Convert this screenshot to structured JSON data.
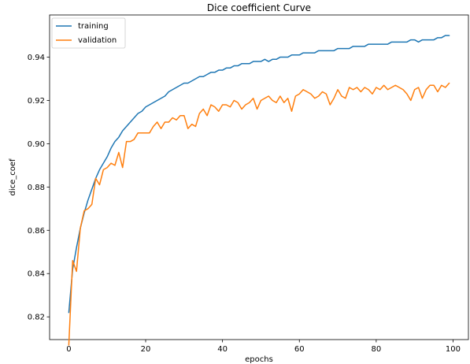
{
  "chart_data": {
    "type": "line",
    "title": "Dice coefficient Curve",
    "xlabel": "epochs",
    "ylabel": "dice_coef",
    "xlim": [
      -5,
      104
    ],
    "ylim": [
      0.8095,
      0.9595
    ],
    "xticks": [
      0,
      20,
      40,
      60,
      80,
      100
    ],
    "yticks": [
      0.82,
      0.84,
      0.86,
      0.88,
      0.9,
      0.92,
      0.94
    ],
    "ytick_labels": [
      "0.82",
      "0.84",
      "0.86",
      "0.88",
      "0.90",
      "0.92",
      "0.94"
    ],
    "grid": false,
    "legend": "top-left",
    "x": [
      0,
      1,
      2,
      3,
      4,
      5,
      6,
      7,
      8,
      9,
      10,
      11,
      12,
      13,
      14,
      15,
      16,
      17,
      18,
      19,
      20,
      21,
      22,
      23,
      24,
      25,
      26,
      27,
      28,
      29,
      30,
      31,
      32,
      33,
      34,
      35,
      36,
      37,
      38,
      39,
      40,
      41,
      42,
      43,
      44,
      45,
      46,
      47,
      48,
      49,
      50,
      51,
      52,
      53,
      54,
      55,
      56,
      57,
      58,
      59,
      60,
      61,
      62,
      63,
      64,
      65,
      66,
      67,
      68,
      69,
      70,
      71,
      72,
      73,
      74,
      75,
      76,
      77,
      78,
      79,
      80,
      81,
      82,
      83,
      84,
      85,
      86,
      87,
      88,
      89,
      90,
      91,
      92,
      93,
      94,
      95,
      96,
      97,
      98,
      99
    ],
    "series": [
      {
        "name": "training",
        "color": "#1f77b4",
        "values": [
          0.822,
          0.842,
          0.852,
          0.861,
          0.868,
          0.874,
          0.879,
          0.884,
          0.888,
          0.891,
          0.894,
          0.898,
          0.901,
          0.903,
          0.906,
          0.908,
          0.91,
          0.912,
          0.914,
          0.915,
          0.917,
          0.918,
          0.919,
          0.92,
          0.921,
          0.922,
          0.924,
          0.925,
          0.926,
          0.927,
          0.928,
          0.928,
          0.929,
          0.93,
          0.931,
          0.931,
          0.932,
          0.933,
          0.933,
          0.934,
          0.934,
          0.935,
          0.935,
          0.936,
          0.936,
          0.937,
          0.937,
          0.937,
          0.938,
          0.938,
          0.938,
          0.939,
          0.938,
          0.939,
          0.939,
          0.94,
          0.94,
          0.94,
          0.941,
          0.941,
          0.941,
          0.942,
          0.942,
          0.942,
          0.942,
          0.943,
          0.943,
          0.943,
          0.943,
          0.943,
          0.944,
          0.944,
          0.944,
          0.944,
          0.945,
          0.945,
          0.945,
          0.945,
          0.946,
          0.946,
          0.946,
          0.946,
          0.946,
          0.946,
          0.947,
          0.947,
          0.947,
          0.947,
          0.947,
          0.948,
          0.948,
          0.947,
          0.948,
          0.948,
          0.948,
          0.948,
          0.949,
          0.949,
          0.95,
          0.95
        ]
      },
      {
        "name": "validation",
        "color": "#ff7f0e",
        "values": [
          0.807,
          0.846,
          0.841,
          0.861,
          0.869,
          0.87,
          0.872,
          0.884,
          0.881,
          0.888,
          0.889,
          0.891,
          0.89,
          0.896,
          0.889,
          0.901,
          0.901,
          0.902,
          0.905,
          0.905,
          0.905,
          0.905,
          0.908,
          0.91,
          0.907,
          0.91,
          0.91,
          0.912,
          0.911,
          0.913,
          0.913,
          0.907,
          0.909,
          0.908,
          0.914,
          0.916,
          0.913,
          0.918,
          0.917,
          0.915,
          0.918,
          0.918,
          0.917,
          0.92,
          0.919,
          0.916,
          0.918,
          0.919,
          0.921,
          0.916,
          0.92,
          0.921,
          0.922,
          0.92,
          0.919,
          0.922,
          0.919,
          0.921,
          0.915,
          0.922,
          0.923,
          0.925,
          0.924,
          0.923,
          0.921,
          0.922,
          0.924,
          0.923,
          0.918,
          0.921,
          0.925,
          0.922,
          0.921,
          0.926,
          0.925,
          0.926,
          0.924,
          0.926,
          0.925,
          0.923,
          0.926,
          0.925,
          0.927,
          0.925,
          0.926,
          0.927,
          0.926,
          0.925,
          0.923,
          0.92,
          0.925,
          0.926,
          0.921,
          0.925,
          0.927,
          0.927,
          0.924,
          0.927,
          0.926,
          0.928
        ]
      }
    ]
  }
}
